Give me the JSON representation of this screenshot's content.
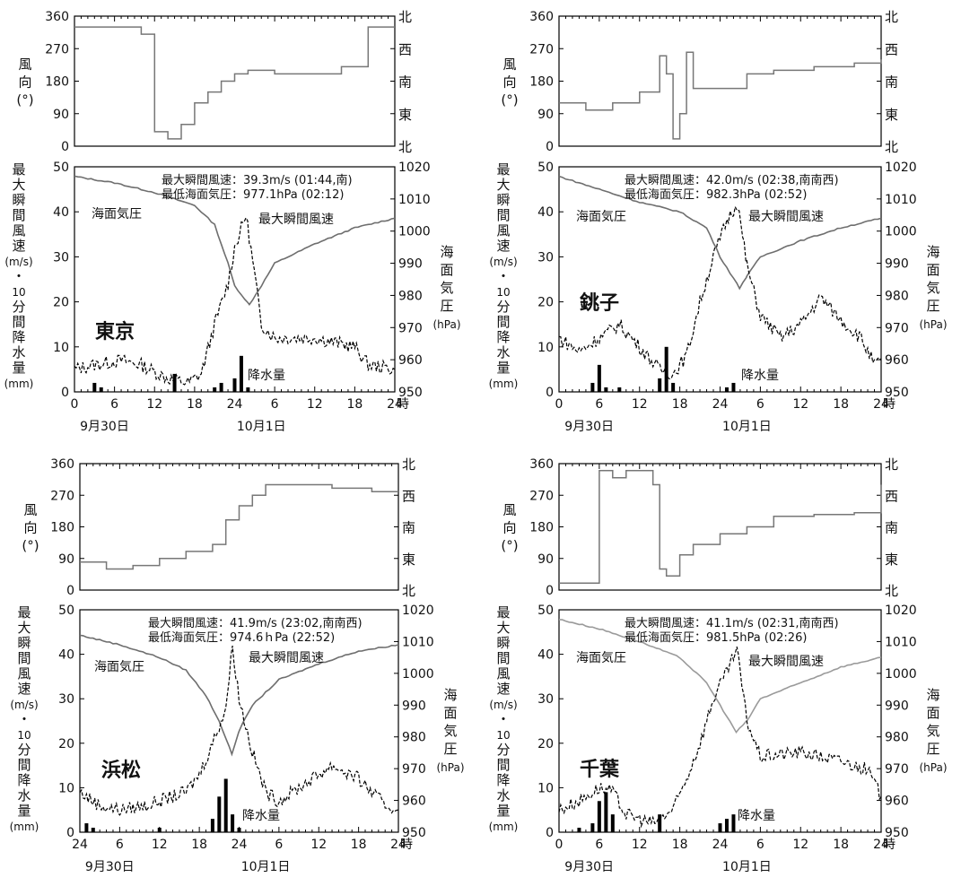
{
  "chart_data": [
    {
      "type": "line",
      "station": "東京",
      "wd_ylabel": [
        "風",
        "向",
        "(°)"
      ],
      "wd_ticks": [
        "0",
        "90",
        "180",
        "270",
        "360"
      ],
      "wd_right_ticks": [
        "北",
        "東",
        "南",
        "西",
        "北"
      ],
      "ylabel_left": [
        "最",
        "大",
        "瞬",
        "間",
        "風",
        "速",
        "(m/s)",
        "・",
        "10",
        "分",
        "間",
        "降",
        "水",
        "量",
        "(mm)"
      ],
      "ylabel_right": [
        "海",
        "面",
        "気",
        "圧",
        "(hPa)"
      ],
      "left_ticks": [
        "0",
        "10",
        "20",
        "30",
        "40",
        "50"
      ],
      "right_ticks": [
        "950",
        "960",
        "970",
        "980",
        "990",
        "1000",
        "1010",
        "1020"
      ],
      "x_ticks": [
        "0",
        "6",
        "12",
        "18",
        "24",
        "6",
        "12",
        "18",
        "24"
      ],
      "x_unit": "時",
      "date_labels": [
        "9月30日",
        "10月1日"
      ],
      "label_pressure": "海面気圧",
      "label_gust": "最大瞬間風速",
      "label_precip": "降水量",
      "info_line1": "最大瞬間風速：39.3m/s (01:44,南)",
      "info_line2": "最低海面気圧：977.1hPa (02:12)",
      "x_range_hours": [
        0,
        48
      ],
      "wind_ylim": [
        0,
        50
      ],
      "pressure_ylim": [
        950,
        1020
      ],
      "direction_ylim": [
        0,
        360
      ],
      "pressure_hpa": [
        [
          0,
          1017
        ],
        [
          6,
          1015
        ],
        [
          12,
          1012
        ],
        [
          18,
          1008
        ],
        [
          21,
          1002
        ],
        [
          23,
          990
        ],
        [
          24,
          983
        ],
        [
          26.2,
          977.1
        ],
        [
          28,
          983
        ],
        [
          30,
          990
        ],
        [
          36,
          996
        ],
        [
          42,
          1001
        ],
        [
          48,
          1004
        ]
      ],
      "gust_ms": [
        [
          0,
          5
        ],
        [
          3,
          6
        ],
        [
          7,
          7
        ],
        [
          10,
          6
        ],
        [
          14,
          3
        ],
        [
          17,
          2
        ],
        [
          19,
          4
        ],
        [
          21,
          15
        ],
        [
          23,
          24
        ],
        [
          24,
          32
        ],
        [
          25.7,
          39.3
        ],
        [
          27,
          26
        ],
        [
          28,
          15
        ],
        [
          30,
          12
        ],
        [
          36,
          12
        ],
        [
          42,
          10
        ],
        [
          44,
          6
        ],
        [
          48,
          5
        ]
      ],
      "precip_mm": [
        [
          3,
          2
        ],
        [
          4,
          1
        ],
        [
          15,
          4
        ],
        [
          21,
          1
        ],
        [
          22,
          2
        ],
        [
          24,
          3
        ],
        [
          25,
          8
        ],
        [
          26,
          1
        ]
      ],
      "direction_deg": [
        [
          0,
          330
        ],
        [
          8,
          330
        ],
        [
          10,
          310
        ],
        [
          12,
          40
        ],
        [
          14,
          20
        ],
        [
          16,
          60
        ],
        [
          18,
          120
        ],
        [
          20,
          150
        ],
        [
          22,
          180
        ],
        [
          24,
          200
        ],
        [
          26,
          210
        ],
        [
          30,
          200
        ],
        [
          36,
          200
        ],
        [
          40,
          220
        ],
        [
          44,
          330
        ],
        [
          48,
          330
        ]
      ]
    },
    {
      "type": "line",
      "station": "銚子",
      "wd_ylabel": [
        "風",
        "向",
        "(°)"
      ],
      "wd_ticks": [
        "0",
        "90",
        "180",
        "270",
        "360"
      ],
      "wd_right_ticks": [
        "北",
        "東",
        "南",
        "西",
        "北"
      ],
      "ylabel_left": [
        "最",
        "大",
        "瞬",
        "間",
        "風",
        "速",
        "(m/s)",
        "・",
        "10",
        "分",
        "間",
        "降",
        "水",
        "量",
        "(mm)"
      ],
      "ylabel_right": [
        "海",
        "面",
        "気",
        "圧",
        "(hPa)"
      ],
      "left_ticks": [
        "0",
        "10",
        "20",
        "30",
        "40",
        "50"
      ],
      "right_ticks": [
        "950",
        "960",
        "970",
        "980",
        "990",
        "1000",
        "1010",
        "1020"
      ],
      "x_ticks": [
        "0",
        "6",
        "12",
        "18",
        "24",
        "6",
        "12",
        "18",
        "24"
      ],
      "x_unit": "時",
      "date_labels": [
        "9月30日",
        "10月1日"
      ],
      "label_pressure": "海面気圧",
      "label_gust": "最大瞬間風速",
      "label_precip": "降水量",
      "info_line1": "最大瞬間風速：42.0m/s (02:38,南南西)",
      "info_line2": "最低海面気圧：982.3hPa (02:52)",
      "x_range_hours": [
        0,
        48
      ],
      "wind_ylim": [
        0,
        50
      ],
      "pressure_ylim": [
        950,
        1020
      ],
      "direction_ylim": [
        0,
        360
      ],
      "pressure_hpa": [
        [
          0,
          1017
        ],
        [
          6,
          1013
        ],
        [
          12,
          1009
        ],
        [
          18,
          1006
        ],
        [
          22,
          1001
        ],
        [
          24,
          992
        ],
        [
          26.9,
          982.3
        ],
        [
          28,
          986
        ],
        [
          30,
          992
        ],
        [
          36,
          997
        ],
        [
          42,
          1001
        ],
        [
          48,
          1004
        ]
      ],
      "gust_ms": [
        [
          0,
          12
        ],
        [
          3,
          9
        ],
        [
          6,
          12
        ],
        [
          9,
          15
        ],
        [
          12,
          10
        ],
        [
          15,
          5
        ],
        [
          17,
          4
        ],
        [
          19,
          8
        ],
        [
          21,
          20
        ],
        [
          23,
          30
        ],
        [
          25,
          38
        ],
        [
          26.6,
          42
        ],
        [
          28,
          28
        ],
        [
          30,
          17
        ],
        [
          33,
          12
        ],
        [
          36,
          15
        ],
        [
          39,
          21
        ],
        [
          42,
          16
        ],
        [
          45,
          12
        ],
        [
          47,
          6
        ],
        [
          48,
          7
        ]
      ],
      "precip_mm": [
        [
          5,
          2
        ],
        [
          6,
          6
        ],
        [
          7,
          1
        ],
        [
          9,
          1
        ],
        [
          15,
          3
        ],
        [
          16,
          10
        ],
        [
          17,
          2
        ],
        [
          25,
          1
        ],
        [
          26,
          2
        ]
      ],
      "direction_deg": [
        [
          0,
          120
        ],
        [
          4,
          100
        ],
        [
          8,
          120
        ],
        [
          12,
          150
        ],
        [
          15,
          250
        ],
        [
          16,
          200
        ],
        [
          17,
          20
        ],
        [
          18,
          90
        ],
        [
          19,
          260
        ],
        [
          20,
          160
        ],
        [
          24,
          160
        ],
        [
          28,
          200
        ],
        [
          32,
          210
        ],
        [
          38,
          220
        ],
        [
          44,
          230
        ],
        [
          48,
          240
        ]
      ]
    },
    {
      "type": "line",
      "station": "浜松",
      "wd_ylabel": [
        "風",
        "向",
        "(°)"
      ],
      "wd_ticks": [
        "0",
        "90",
        "180",
        "270",
        "360"
      ],
      "wd_right_ticks": [
        "北",
        "東",
        "南",
        "西",
        "北"
      ],
      "ylabel_left": [
        "最",
        "大",
        "瞬",
        "間",
        "風",
        "速",
        "(m/s)",
        "・",
        "10",
        "分",
        "間",
        "降",
        "水",
        "量",
        "(mm)"
      ],
      "ylabel_right": [
        "海",
        "面",
        "気",
        "圧",
        "(hPa)"
      ],
      "left_ticks": [
        "0",
        "10",
        "20",
        "30",
        "40",
        "50"
      ],
      "right_ticks": [
        "950",
        "960",
        "970",
        "980",
        "990",
        "1000",
        "1010",
        "1020"
      ],
      "x_ticks": [
        "24",
        "6",
        "12",
        "18",
        "24",
        "6",
        "12",
        "18",
        "24"
      ],
      "x_unit": "時",
      "date_labels": [
        "9月30日",
        "10月1日"
      ],
      "label_pressure": "海面気圧",
      "label_gust": "最大瞬間風速",
      "label_precip": "降水量",
      "info_line1": "最大瞬間風速：41.9m/s (23:02,南南西)",
      "info_line2": "最低海面気圧：974.6ｈPa (22:52)",
      "x_range_hours": [
        0,
        48
      ],
      "wind_ylim": [
        0,
        50
      ],
      "pressure_ylim": [
        950,
        1020
      ],
      "direction_ylim": [
        0,
        360
      ],
      "pressure_hpa": [
        [
          0,
          1012
        ],
        [
          6,
          1009
        ],
        [
          12,
          1005
        ],
        [
          16,
          1001
        ],
        [
          19,
          993
        ],
        [
          21,
          985
        ],
        [
          22.9,
          974.6
        ],
        [
          24,
          982
        ],
        [
          26,
          990
        ],
        [
          30,
          998
        ],
        [
          36,
          1003
        ],
        [
          42,
          1007
        ],
        [
          48,
          1009
        ]
      ],
      "gust_ms": [
        [
          0,
          9
        ],
        [
          3,
          6
        ],
        [
          6,
          5
        ],
        [
          10,
          6
        ],
        [
          14,
          8
        ],
        [
          16,
          9
        ],
        [
          18,
          13
        ],
        [
          20,
          20
        ],
        [
          22,
          28
        ],
        [
          23,
          41.9
        ],
        [
          24,
          30
        ],
        [
          26,
          18
        ],
        [
          28,
          9
        ],
        [
          30,
          7
        ],
        [
          34,
          11
        ],
        [
          38,
          15
        ],
        [
          42,
          12
        ],
        [
          46,
          6
        ],
        [
          48,
          5
        ]
      ],
      "precip_mm": [
        [
          1,
          2
        ],
        [
          2,
          1
        ],
        [
          12,
          1
        ],
        [
          20,
          3
        ],
        [
          21,
          8
        ],
        [
          22,
          12
        ],
        [
          23,
          4
        ],
        [
          24,
          1
        ]
      ],
      "direction_deg": [
        [
          0,
          80
        ],
        [
          4,
          60
        ],
        [
          8,
          70
        ],
        [
          12,
          90
        ],
        [
          16,
          110
        ],
        [
          20,
          130
        ],
        [
          22,
          200
        ],
        [
          24,
          240
        ],
        [
          26,
          270
        ],
        [
          28,
          300
        ],
        [
          32,
          300
        ],
        [
          38,
          290
        ],
        [
          44,
          280
        ],
        [
          48,
          280
        ]
      ]
    },
    {
      "type": "line",
      "station": "千葉",
      "wd_ylabel": [
        "風",
        "向",
        "(°)"
      ],
      "wd_ticks": [
        "0",
        "90",
        "180",
        "270",
        "360"
      ],
      "wd_right_ticks": [
        "北",
        "東",
        "南",
        "西",
        "北"
      ],
      "ylabel_left": [
        "最",
        "大",
        "瞬",
        "間",
        "風",
        "速",
        "(m/s)",
        "・",
        "10",
        "分",
        "間",
        "降",
        "水",
        "量",
        "(mm)"
      ],
      "ylabel_right": [
        "海",
        "面",
        "気",
        "圧",
        "(hPa)"
      ],
      "left_ticks": [
        "0",
        "10",
        "20",
        "30",
        "40",
        "50"
      ],
      "right_ticks": [
        "950",
        "960",
        "970",
        "980",
        "990",
        "1000",
        "1010",
        "1020"
      ],
      "x_ticks": [
        "0",
        "6",
        "12",
        "18",
        "24",
        "6",
        "12",
        "18",
        "24"
      ],
      "x_unit": "時",
      "date_labels": [
        "9月30日",
        "10月1日"
      ],
      "label_pressure": "海面気圧",
      "label_gust": "最大瞬間風速",
      "label_precip": "降水量",
      "info_line1": "最大瞬間風速：41.1m/s (02:31,南南西)",
      "info_line2": "最低海面気圧：981.5hPa (02:26)",
      "x_range_hours": [
        0,
        48
      ],
      "wind_ylim": [
        0,
        50
      ],
      "pressure_ylim": [
        950,
        1020
      ],
      "direction_ylim": [
        0,
        360
      ],
      "pressure_hpa": [
        [
          0,
          1017
        ],
        [
          6,
          1014
        ],
        [
          12,
          1010
        ],
        [
          18,
          1005
        ],
        [
          22,
          997
        ],
        [
          24,
          990
        ],
        [
          26.4,
          981.5
        ],
        [
          28,
          985
        ],
        [
          30,
          992
        ],
        [
          36,
          997
        ],
        [
          42,
          1002
        ],
        [
          48,
          1005
        ]
      ],
      "gust_ms": [
        [
          0,
          5
        ],
        [
          3,
          7
        ],
        [
          6,
          10
        ],
        [
          8,
          9
        ],
        [
          10,
          4
        ],
        [
          14,
          2
        ],
        [
          17,
          5
        ],
        [
          19,
          12
        ],
        [
          21,
          20
        ],
        [
          23,
          30
        ],
        [
          25,
          36
        ],
        [
          26.5,
          41.1
        ],
        [
          28,
          25
        ],
        [
          30,
          17
        ],
        [
          36,
          18
        ],
        [
          42,
          16
        ],
        [
          46,
          14
        ],
        [
          48,
          8
        ]
      ],
      "precip_mm": [
        [
          3,
          1
        ],
        [
          5,
          2
        ],
        [
          6,
          7
        ],
        [
          7,
          9
        ],
        [
          8,
          4
        ],
        [
          15,
          4
        ],
        [
          24,
          2
        ],
        [
          25,
          3
        ],
        [
          26,
          4
        ]
      ],
      "direction_deg": [
        [
          0,
          20
        ],
        [
          6,
          340
        ],
        [
          8,
          320
        ],
        [
          10,
          340
        ],
        [
          14,
          300
        ],
        [
          15,
          60
        ],
        [
          16,
          40
        ],
        [
          18,
          100
        ],
        [
          20,
          130
        ],
        [
          24,
          160
        ],
        [
          28,
          180
        ],
        [
          32,
          210
        ],
        [
          38,
          215
        ],
        [
          44,
          220
        ],
        [
          48,
          300
        ]
      ]
    }
  ]
}
